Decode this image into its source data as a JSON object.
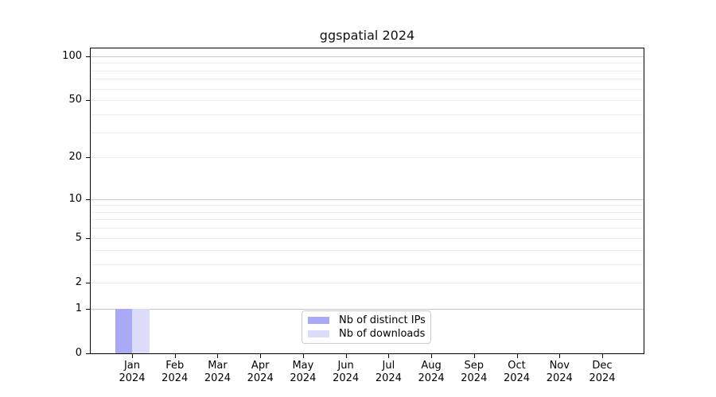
{
  "chart_data": {
    "type": "bar",
    "title": "ggspatial 2024",
    "x_categories": [
      "Jan",
      "Feb",
      "Mar",
      "Apr",
      "May",
      "Jun",
      "Jul",
      "Aug",
      "Sep",
      "Oct",
      "Nov",
      "Dec"
    ],
    "x_year": "2024",
    "series": [
      {
        "name": "Nb of distinct IPs",
        "color": "#a9a9f6",
        "values": [
          1,
          0,
          0,
          0,
          0,
          0,
          0,
          0,
          0,
          0,
          0,
          0
        ]
      },
      {
        "name": "Nb of downloads",
        "color": "#dcdcfa",
        "values": [
          1,
          0,
          0,
          0,
          0,
          0,
          0,
          0,
          0,
          0,
          0,
          0
        ]
      }
    ],
    "yscale": "log1p",
    "ylim": [
      0,
      113
    ],
    "yticks": [
      0,
      1,
      2,
      5,
      10,
      20,
      50,
      100
    ],
    "major_gridline_values": [
      1,
      10,
      100
    ],
    "minor_gridline_values": [
      2,
      3,
      4,
      5,
      6,
      7,
      8,
      9,
      20,
      30,
      40,
      50,
      60,
      70,
      80,
      90
    ],
    "grid": true,
    "legend_position": "bottom-center",
    "colors": {
      "major_grid": "#c8c8c8",
      "minor_grid": "#ececec",
      "axis": "#000000",
      "background": "#ffffff"
    }
  }
}
